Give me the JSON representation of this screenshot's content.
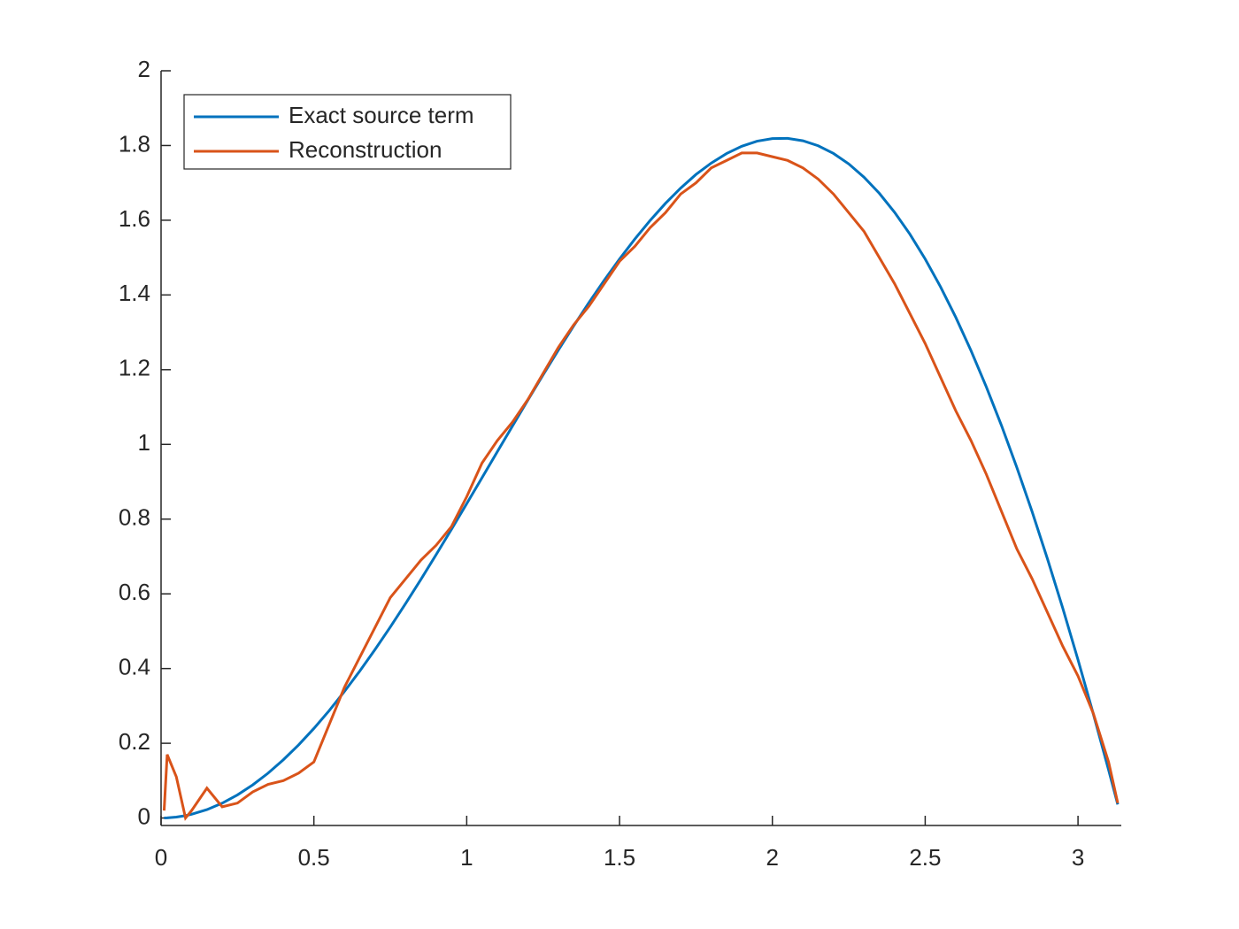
{
  "chart_data": {
    "type": "line",
    "x": [
      0.01,
      0.02,
      0.05,
      0.08,
      0.1,
      0.15,
      0.2,
      0.25,
      0.3,
      0.35,
      0.4,
      0.45,
      0.5,
      0.55,
      0.6,
      0.65,
      0.7,
      0.75,
      0.8,
      0.85,
      0.9,
      0.95,
      1.0,
      1.05,
      1.1,
      1.15,
      1.2,
      1.25,
      1.3,
      1.35,
      1.4,
      1.45,
      1.5,
      1.55,
      1.6,
      1.65,
      1.7,
      1.75,
      1.8,
      1.85,
      1.9,
      1.95,
      2.0,
      2.05,
      2.1,
      2.15,
      2.2,
      2.25,
      2.3,
      2.35,
      2.4,
      2.45,
      2.5,
      2.55,
      2.6,
      2.65,
      2.7,
      2.75,
      2.8,
      2.85,
      2.9,
      2.95,
      3.0,
      3.05,
      3.1,
      3.13
    ],
    "series": [
      {
        "name": "Exact source term",
        "color": "#0072bd",
        "values": [
          0.0001,
          0.0004,
          0.0025,
          0.0064,
          0.01,
          0.0224,
          0.0397,
          0.0619,
          0.0887,
          0.12,
          0.1558,
          0.1957,
          0.2397,
          0.2874,
          0.3388,
          0.3933,
          0.451,
          0.5112,
          0.5739,
          0.6385,
          0.705,
          0.7726,
          0.8415,
          0.9106,
          0.9803,
          1.0496,
          1.1184,
          1.1862,
          1.2526,
          1.3172,
          1.3796,
          1.4395,
          1.4962,
          1.5496,
          1.5993,
          1.6449,
          1.686,
          1.7224,
          1.7529,
          1.7784,
          1.798,
          1.8116,
          1.8186,
          1.8192,
          1.8127,
          1.7993,
          1.7787,
          1.7507,
          1.7151,
          1.672,
          1.6211,
          1.5627,
          1.4962,
          1.4221,
          1.3403,
          1.2508,
          1.1539,
          1.0497,
          0.938,
          0.8194,
          0.6937,
          0.5617,
          0.4234,
          0.2788,
          0.129,
          0.0363
        ]
      },
      {
        "name": "Reconstruction",
        "color": "#d95319",
        "values": [
          0.02,
          0.17,
          0.11,
          0.0,
          0.02,
          0.08,
          0.03,
          0.04,
          0.07,
          0.09,
          0.1,
          0.12,
          0.15,
          0.25,
          0.35,
          0.43,
          0.51,
          0.59,
          0.64,
          0.69,
          0.73,
          0.78,
          0.86,
          0.95,
          1.01,
          1.06,
          1.12,
          1.19,
          1.26,
          1.32,
          1.37,
          1.43,
          1.49,
          1.53,
          1.58,
          1.62,
          1.67,
          1.7,
          1.74,
          1.76,
          1.78,
          1.78,
          1.77,
          1.76,
          1.74,
          1.71,
          1.67,
          1.62,
          1.57,
          1.5,
          1.43,
          1.35,
          1.27,
          1.18,
          1.09,
          1.01,
          0.92,
          0.82,
          0.72,
          0.64,
          0.55,
          0.46,
          0.38,
          0.28,
          0.15,
          0.04
        ]
      }
    ],
    "xlim": [
      0,
      3.1416
    ],
    "ylim": [
      -0.02,
      2
    ],
    "xticks": [
      0,
      0.5,
      1,
      1.5,
      2,
      2.5,
      3
    ],
    "yticks": [
      0,
      0.2,
      0.4,
      0.6,
      0.8,
      1,
      1.2,
      1.4,
      1.6,
      1.8,
      2
    ],
    "legend": "top-left",
    "grid": false
  }
}
